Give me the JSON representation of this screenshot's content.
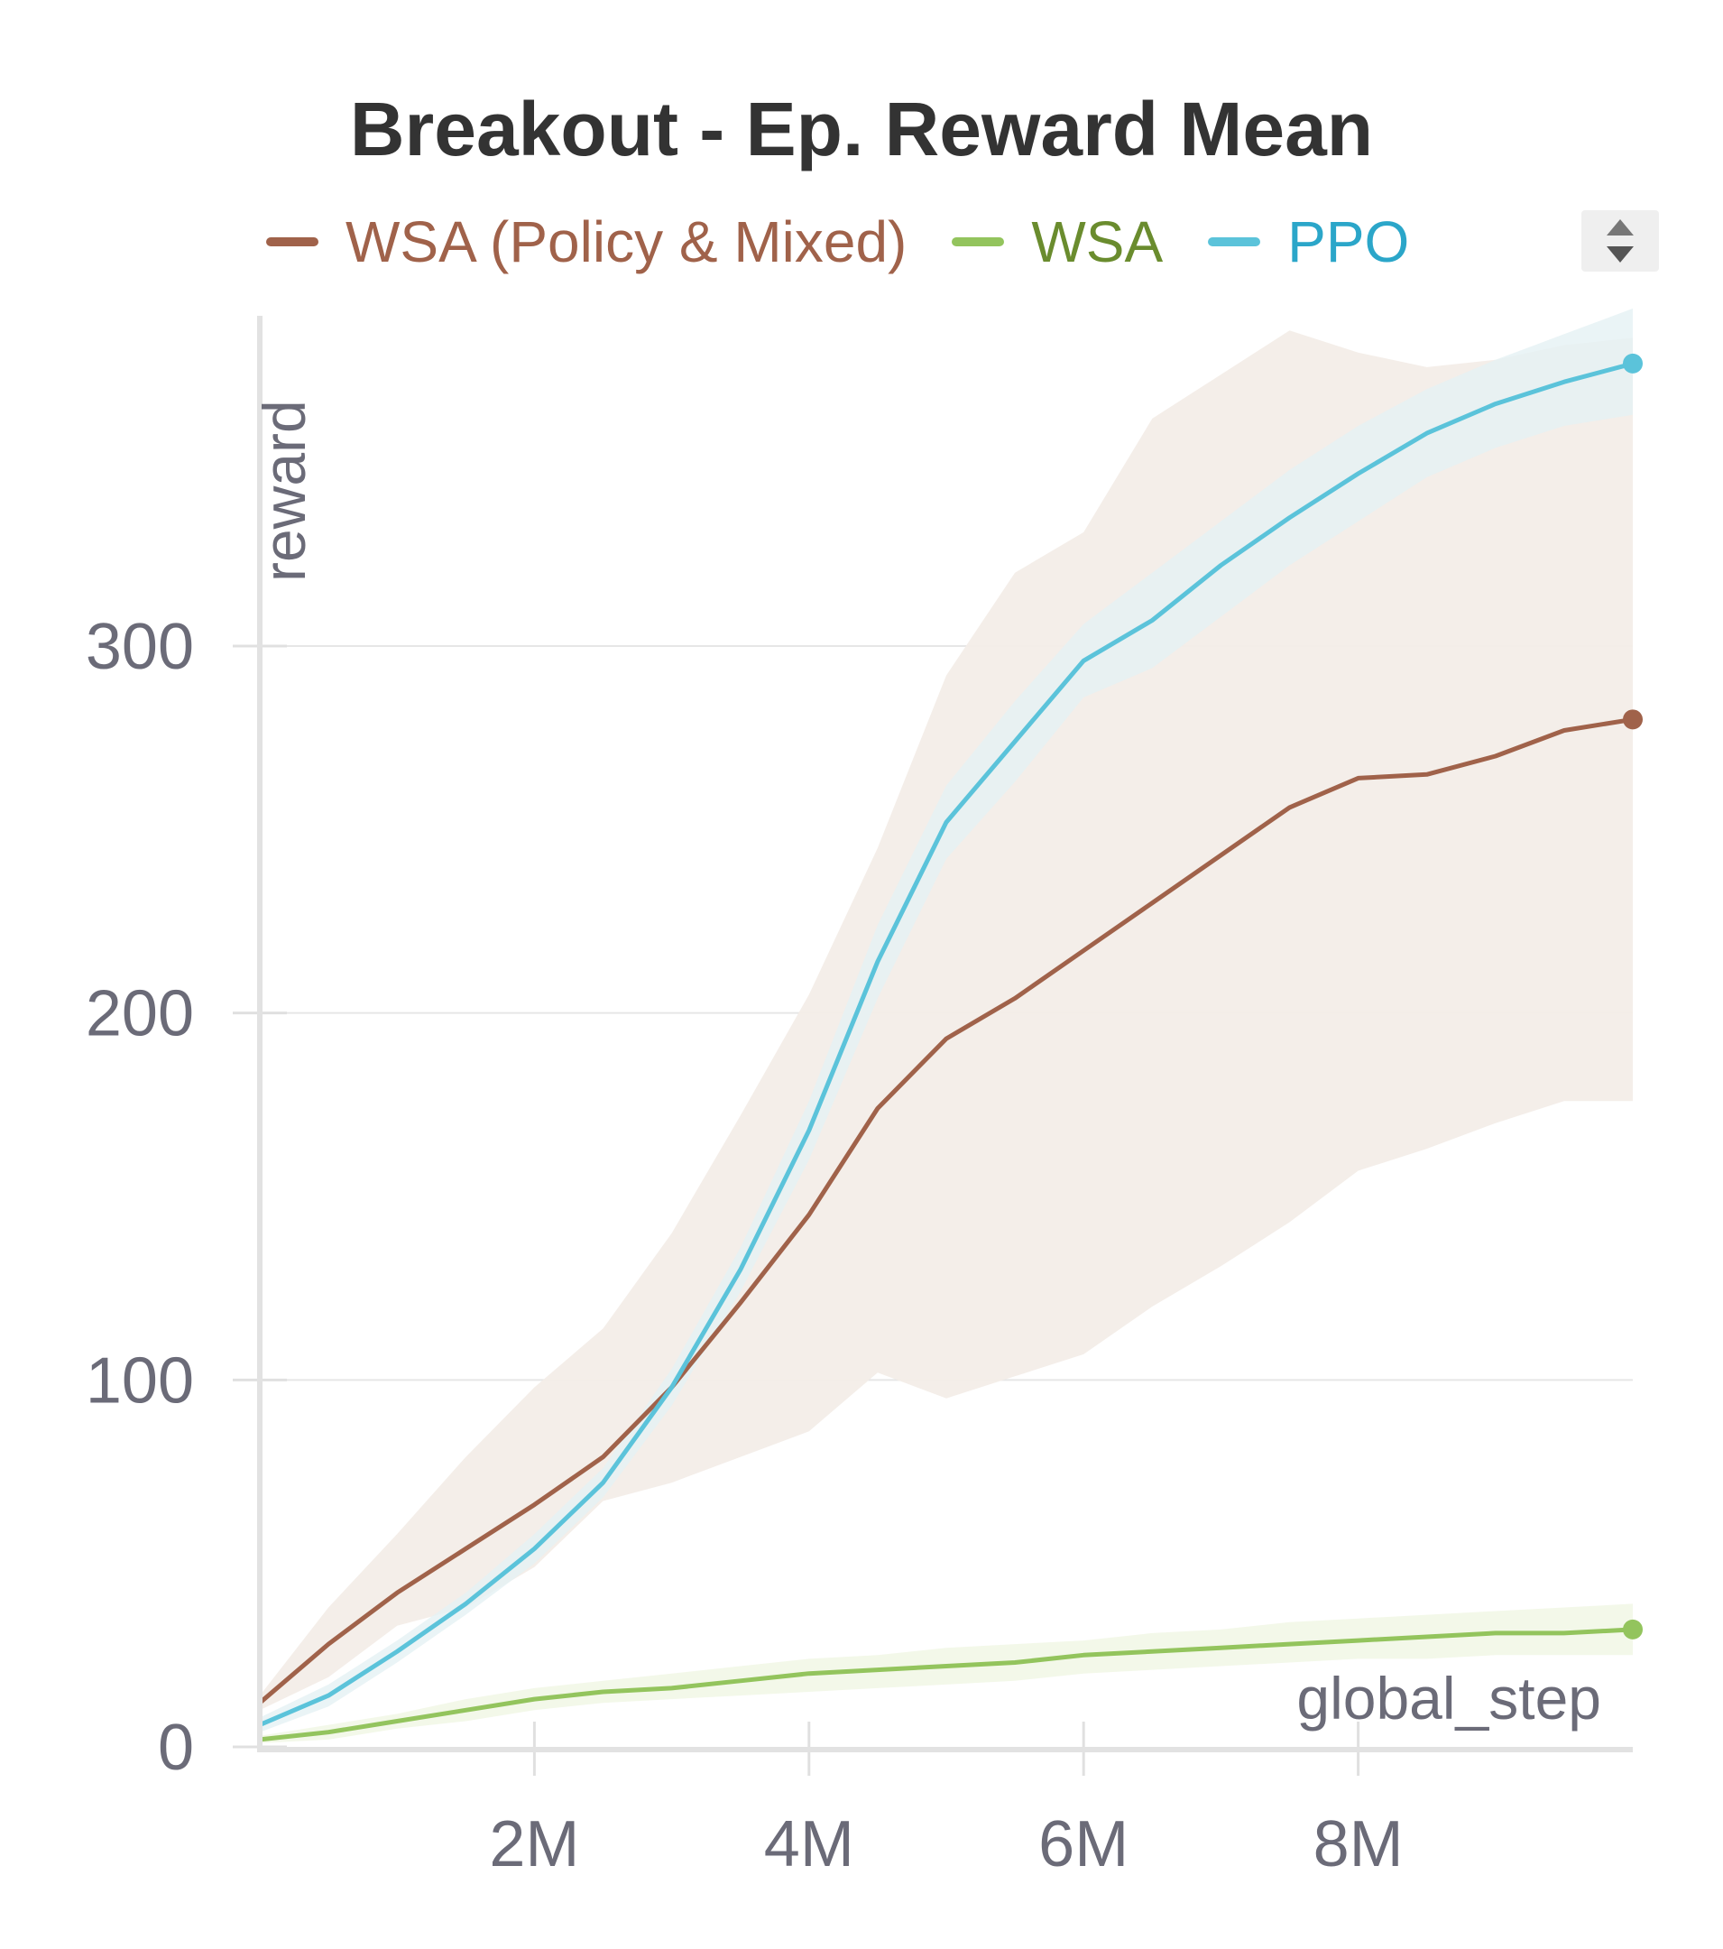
{
  "chart_data": {
    "type": "line",
    "title": "Breakout - Ep. Reward Mean",
    "xlabel": "global_step",
    "ylabel": "reward",
    "xlim": [
      0,
      10000000
    ],
    "ylim": [
      0,
      390
    ],
    "x_ticks": [
      2000000,
      4000000,
      6000000,
      8000000
    ],
    "x_tick_labels": [
      "2M",
      "4M",
      "6M",
      "8M"
    ],
    "y_ticks": [
      0,
      100,
      200,
      300
    ],
    "y_tick_labels": [
      "0",
      "100",
      "200",
      "300"
    ],
    "grid": true,
    "legend_position": "top",
    "x": [
      0,
      500000,
      1000000,
      1500000,
      2000000,
      2500000,
      3000000,
      3500000,
      4000000,
      4500000,
      5000000,
      5500000,
      6000000,
      6500000,
      7000000,
      7500000,
      8000000,
      8500000,
      9000000,
      9500000,
      10000000
    ],
    "series": [
      {
        "name": "WSA (Policy & Mixed)",
        "color": "#a0624a",
        "band_color": "#f3ede8",
        "values": [
          12,
          28,
          42,
          54,
          66,
          79,
          98,
          121,
          145,
          174,
          193,
          204,
          217,
          230,
          243,
          256,
          264,
          265,
          270,
          277,
          280
        ],
        "upper": [
          14,
          38,
          58,
          79,
          98,
          114,
          140,
          172,
          205,
          245,
          292,
          320,
          331,
          362,
          374,
          386,
          380,
          376,
          378,
          382,
          384
        ],
        "lower": [
          10,
          19,
          33,
          38,
          49,
          67,
          72,
          79,
          86,
          102,
          95,
          101,
          107,
          120,
          131,
          143,
          157,
          163,
          170,
          176,
          176
        ]
      },
      {
        "name": "WSA",
        "color": "#93c45d",
        "band_color": "#f0f6e4",
        "values": [
          2,
          4,
          7,
          10,
          13,
          15,
          16,
          18,
          20,
          21,
          22,
          23,
          25,
          26,
          27,
          28,
          29,
          30,
          31,
          31,
          32
        ],
        "upper": [
          3,
          6,
          9,
          13,
          16,
          18,
          20,
          22,
          24,
          25,
          27,
          28,
          29,
          31,
          32,
          34,
          35,
          36,
          37,
          38,
          39
        ],
        "lower": [
          1,
          2,
          5,
          7,
          10,
          12,
          13,
          14,
          15,
          16,
          17,
          18,
          20,
          21,
          22,
          23,
          24,
          24,
          25,
          25,
          25
        ]
      },
      {
        "name": "PPO",
        "color": "#5bc3da",
        "band_color": "#e5f1f4",
        "values": [
          6,
          14,
          26,
          39,
          54,
          72,
          98,
          130,
          168,
          214,
          252,
          274,
          296,
          307,
          322,
          335,
          347,
          358,
          366,
          372,
          377
        ],
        "upper": [
          8,
          17,
          29,
          42,
          58,
          76,
          103,
          136,
          176,
          224,
          262,
          285,
          306,
          320,
          334,
          348,
          360,
          370,
          378,
          385,
          392
        ],
        "lower": [
          4,
          11,
          23,
          36,
          50,
          68,
          93,
          124,
          160,
          204,
          242,
          263,
          286,
          294,
          308,
          322,
          334,
          346,
          354,
          360,
          363
        ]
      }
    ]
  }
}
